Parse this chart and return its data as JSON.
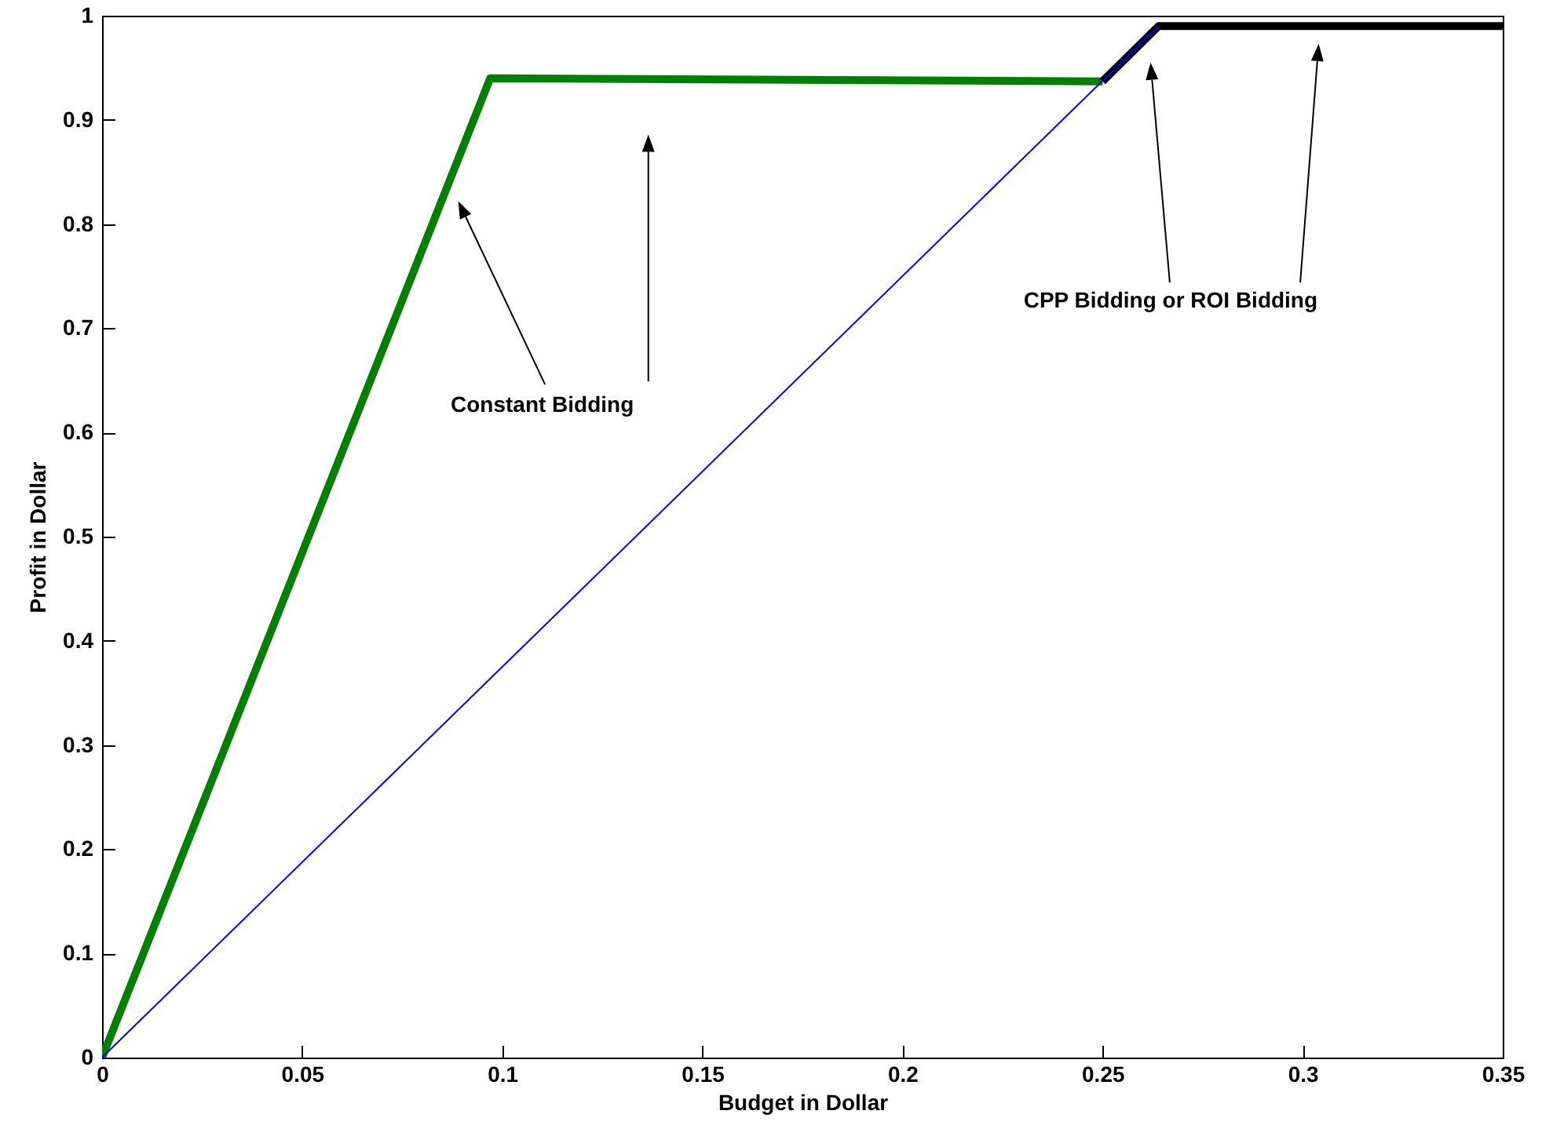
{
  "chart_data": {
    "type": "line",
    "xlabel": "Budget in Dollar",
    "ylabel": "Profit in Dollar",
    "xlim": [
      0,
      0.35
    ],
    "xticks": [
      0,
      0.05,
      0.1,
      0.15,
      0.2,
      0.25,
      0.3,
      0.35
    ],
    "ylim": [
      0,
      1
    ],
    "yticks": [
      0,
      0.1,
      0.2,
      0.3,
      0.4,
      0.5,
      0.6,
      0.7,
      0.8,
      0.9,
      1
    ],
    "grid": false,
    "marker": "none",
    "line_style": "solid",
    "series": [
      {
        "color": "#0000ff",
        "x": [
          0,
          0.264
        ],
        "values": [
          0,
          0.99
        ]
      },
      {
        "color": "#008000",
        "x": [
          0,
          0.097,
          0.25
        ],
        "values": [
          0,
          0.94,
          0.937
        ]
      },
      {
        "color": "#000000",
        "x": [
          0.25,
          0.264,
          0.35
        ],
        "values": [
          0.937,
          0.99,
          0.99
        ]
      }
    ],
    "annotations": [
      "Constant Bidding",
      "CPP Bidding or ROI Bidding"
    ]
  }
}
